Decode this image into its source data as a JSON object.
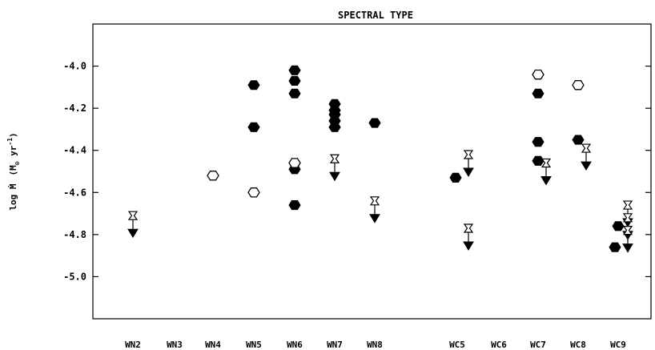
{
  "chart_data": {
    "type": "scatter",
    "title": "SPECTRAL TYPE",
    "xlabel": "",
    "ylabel_main": "log Ṁ",
    "ylabel_units": "(M",
    "ylabel_units_sub": "⊙",
    "ylabel_units_rest": " yr",
    "ylabel_units_exp": "-1",
    "ylabel_units_close": ")",
    "categories": [
      "WN2",
      "WN3",
      "WN4",
      "WN5",
      "WN6",
      "WN7",
      "WN8",
      "WC5",
      "WC6",
      "WC7",
      "WC8",
      "WC9"
    ],
    "ylim": [
      -5.2,
      -3.8
    ],
    "yticks": [
      -4.0,
      -4.2,
      -4.4,
      -4.6,
      -4.8,
      -5.0
    ],
    "ytick_labels": [
      "-4.0",
      "-4.2",
      "-4.4",
      "-4.6",
      "-4.8",
      "-5.0"
    ],
    "grid": false,
    "series": [
      {
        "marker": "filled-hexagon",
        "points": [
          {
            "x": "WN5",
            "y": -4.09
          },
          {
            "x": "WN5",
            "y": -4.29
          },
          {
            "x": "WN6",
            "y": -4.02
          },
          {
            "x": "WN6",
            "y": -4.07
          },
          {
            "x": "WN6",
            "y": -4.13
          },
          {
            "x": "WN6",
            "y": -4.49
          },
          {
            "x": "WN6",
            "y": -4.66
          },
          {
            "x": "WN7",
            "y": -4.18
          },
          {
            "x": "WN7",
            "y": -4.21
          },
          {
            "x": "WN7",
            "y": -4.23
          },
          {
            "x": "WN7",
            "y": -4.26
          },
          {
            "x": "WN7",
            "y": -4.29
          },
          {
            "x": "WN8",
            "y": -4.27
          },
          {
            "x": "WC5",
            "y": -4.53
          },
          {
            "x": "WC7",
            "y": -4.13
          },
          {
            "x": "WC7",
            "y": -4.36
          },
          {
            "x": "WC7",
            "y": -4.45
          },
          {
            "x": "WC8",
            "y": -4.35
          },
          {
            "x": "WC9",
            "y": -4.86
          },
          {
            "x": "WC9",
            "y": -4.76
          }
        ]
      },
      {
        "marker": "open-hexagon",
        "points": [
          {
            "x": "WN4",
            "y": -4.52
          },
          {
            "x": "WN5",
            "y": -4.6
          },
          {
            "x": "WN6",
            "y": -4.46
          },
          {
            "x": "WC7",
            "y": -4.04
          },
          {
            "x": "WC8",
            "y": -4.09
          }
        ]
      },
      {
        "marker": "upper-limit-arrow",
        "points": [
          {
            "x": "WN2",
            "y": -4.71
          },
          {
            "x": "WN7",
            "y": -4.44
          },
          {
            "x": "WN8",
            "y": -4.64
          },
          {
            "x": "WC5",
            "y": -4.42
          },
          {
            "x": "WC5",
            "y": -4.77
          },
          {
            "x": "WC7",
            "y": -4.46
          },
          {
            "x": "WC8",
            "y": -4.39
          },
          {
            "x": "WC9",
            "y": -4.66
          },
          {
            "x": "WC9",
            "y": -4.72
          },
          {
            "x": "WC9",
            "y": -4.78
          }
        ]
      }
    ]
  }
}
